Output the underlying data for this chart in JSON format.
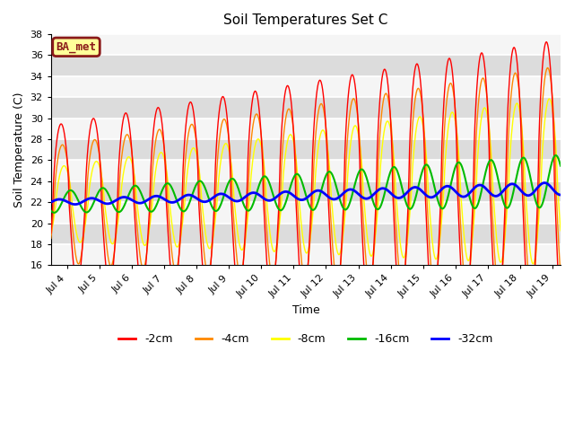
{
  "title": "Soil Temperatures Set C",
  "xlabel": "Time",
  "ylabel": "Soil Temperature (C)",
  "ylim": [
    16,
    38
  ],
  "xlim_days": [
    3.5,
    19.25
  ],
  "tick_days": [
    4,
    5,
    6,
    7,
    8,
    9,
    10,
    11,
    12,
    13,
    14,
    15,
    16,
    17,
    18,
    19
  ],
  "tick_labels": [
    "Jul 4",
    "Jul 5",
    "Jul 6",
    "Jul 7",
    "Jul 8",
    "Jul 9",
    "Jul 10",
    "Jul 11",
    "Jul 12",
    "Jul 13",
    "Jul 14",
    "Jul 15",
    "Jul 16",
    "Jul 17",
    "Jul 18",
    "Jul 19"
  ],
  "yticks": [
    16,
    18,
    20,
    22,
    24,
    26,
    28,
    30,
    32,
    34,
    36,
    38
  ],
  "legend_labels": [
    "-2cm",
    "-4cm",
    "-8cm",
    "-16cm",
    "-32cm"
  ],
  "legend_colors": [
    "#ff0000",
    "#ff8800",
    "#ffff00",
    "#00bb00",
    "#0000ff"
  ],
  "plot_bg_color": "#e0e0e0",
  "grid_color_light": "#f0f0f0",
  "grid_color_dark": "#d8d8d8",
  "ba_met_label": "BA_met",
  "ba_met_bg": "#ffff99",
  "ba_met_border": "#8b1a1a"
}
